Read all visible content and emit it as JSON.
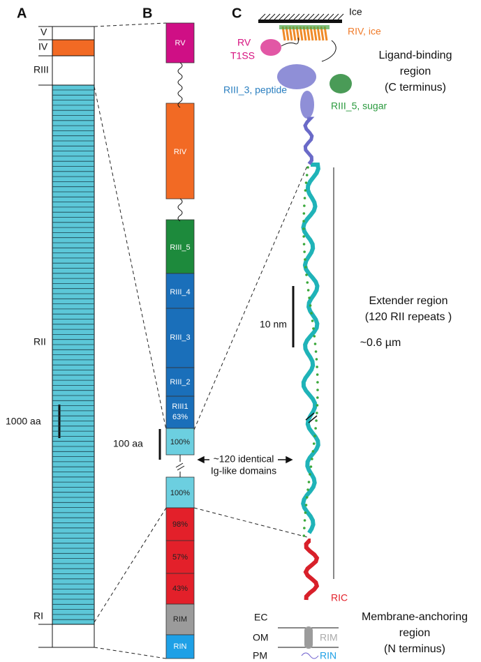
{
  "panel_a": {
    "label": "A",
    "segments": [
      "V",
      "IV",
      "RIII",
      "RII",
      "RI"
    ],
    "scale_label": "1000 aa"
  },
  "panel_b": {
    "label": "B",
    "segments": [
      "RV",
      "RIV",
      "RIII_5",
      "RIII_4",
      "RIII_3",
      "RIII_2",
      "RIII1",
      "63%",
      "100%",
      "100%",
      "98%",
      "57%",
      "43%",
      "RIM",
      "RIN"
    ],
    "scale_label": "100 aa",
    "arrow_label": [
      "~120 identical",
      "Ig-like domains"
    ]
  },
  "panel_c": {
    "label": "C",
    "ice": "Ice",
    "rv": [
      "RV",
      "T1SS"
    ],
    "riv": "RIV, ice",
    "ligand_region": [
      "Ligand-binding",
      "region",
      "(C terminus)"
    ],
    "riii3": "RIII_3, peptide",
    "riii5": "RIII_5, sugar",
    "extender_region": [
      "Extender region",
      "(120 RII repeats )"
    ],
    "length": "~0.6 µm",
    "scale_label": "10 nm",
    "ric": "RIC",
    "layers": [
      "EC",
      "OM",
      "PM"
    ],
    "rim": "RIM",
    "rin": "RIN",
    "membrane_region": [
      "Membrane-anchoring",
      "region",
      "(N terminus)"
    ]
  }
}
